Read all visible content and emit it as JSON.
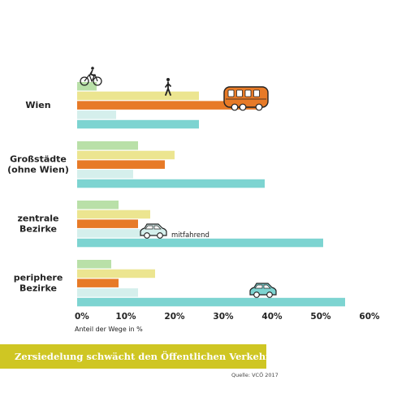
{
  "colors": {
    "walk": "#b9e0a8",
    "bike": "#ece590",
    "public_transport": "#e77a27",
    "car_passenger": "#d5efec",
    "car_driver": "#7dd4d1",
    "banner": "#cfc623"
  },
  "chart_data": {
    "type": "bar",
    "orientation": "horizontal",
    "categories": [
      "Wien",
      "Großstädte\n(ohne Wien)",
      "zentrale\nBezirke",
      "periphere\nBezirke"
    ],
    "series": [
      {
        "icon": "bicycle-icon",
        "values": [
          4,
          12.5,
          8.5,
          7
        ]
      },
      {
        "icon": "pedestrian-icon",
        "values": [
          25,
          20,
          15,
          16
        ]
      },
      {
        "icon": "bus-icon",
        "values": [
          37,
          18,
          12.5,
          8.5
        ]
      },
      {
        "name": "mitfahrend",
        "icon": "car-icon",
        "values": [
          8,
          11.5,
          13,
          12.5
        ]
      },
      {
        "icon": "car-icon",
        "values": [
          25,
          38.5,
          50.5,
          55
        ]
      }
    ],
    "xlim": [
      0,
      60
    ],
    "xticks": [
      "0%",
      "10%",
      "20%",
      "30%",
      "40%",
      "50%",
      "60%"
    ],
    "xlabel": "Anteil der Wege in %",
    "grid": false,
    "legend": "none"
  },
  "banner": {
    "text": "Zersiedelung schwächt den Öffentlichen Verkehr"
  },
  "source": "Quelle: VCÖ 2017"
}
